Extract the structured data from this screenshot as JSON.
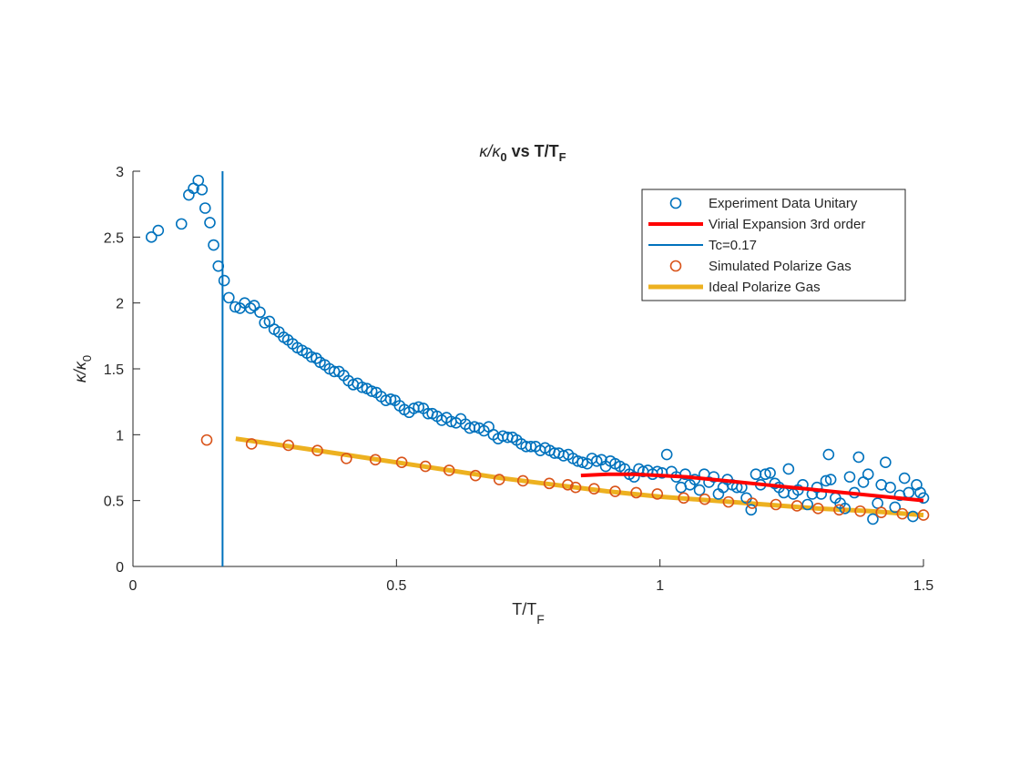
{
  "figure": {
    "title": "κ/κ0 vs T/TF",
    "title_parts": {
      "kappa": "κ",
      "kappa_sub": "0",
      "vs": " vs T/T",
      "tf_sub": "F"
    },
    "xlabel_parts": {
      "main": "T/T",
      "sub": "F"
    },
    "ylabel_parts": {
      "kappa": "κ",
      "slash": "/κ",
      "sub": "0"
    }
  },
  "chart_data": {
    "type": "scatter",
    "title": "κ/κ0 vs T/TF",
    "xlabel": "T/TF",
    "ylabel": "κ/κ0",
    "xlim": [
      0,
      1.5
    ],
    "ylim": [
      0,
      3
    ],
    "xticks": [
      "0",
      "0.5",
      "1",
      "1.5"
    ],
    "yticks": [
      "0",
      "0.5",
      "1",
      "1.5",
      "2",
      "2.5",
      "3"
    ],
    "grid": false,
    "legend_position": "top-right",
    "colors": {
      "experiment": "#0072BD",
      "virial": "#FF0000",
      "tc": "#0072BD",
      "simulated": "#D95319",
      "ideal": "#EDB120",
      "axis": "#262626"
    },
    "series": [
      {
        "name": "Experiment Data Unitary",
        "style": "circle",
        "points": [
          [
            0.035,
            2.5
          ],
          [
            0.048,
            2.55
          ],
          [
            0.092,
            2.6
          ],
          [
            0.106,
            2.82
          ],
          [
            0.115,
            2.87
          ],
          [
            0.124,
            2.93
          ],
          [
            0.131,
            2.86
          ],
          [
            0.137,
            2.72
          ],
          [
            0.146,
            2.61
          ],
          [
            0.153,
            2.44
          ],
          [
            0.162,
            2.28
          ],
          [
            0.173,
            2.17
          ],
          [
            0.182,
            2.04
          ],
          [
            0.194,
            1.97
          ],
          [
            0.203,
            1.96
          ],
          [
            0.212,
            2.0
          ],
          [
            0.223,
            1.96
          ],
          [
            0.23,
            1.98
          ],
          [
            0.241,
            1.93
          ],
          [
            0.25,
            1.85
          ],
          [
            0.259,
            1.86
          ],
          [
            0.268,
            1.8
          ],
          [
            0.277,
            1.78
          ],
          [
            0.286,
            1.74
          ],
          [
            0.294,
            1.72
          ],
          [
            0.303,
            1.69
          ],
          [
            0.312,
            1.66
          ],
          [
            0.321,
            1.64
          ],
          [
            0.33,
            1.62
          ],
          [
            0.339,
            1.59
          ],
          [
            0.348,
            1.58
          ],
          [
            0.355,
            1.55
          ],
          [
            0.364,
            1.53
          ],
          [
            0.373,
            1.5
          ],
          [
            0.382,
            1.48
          ],
          [
            0.391,
            1.48
          ],
          [
            0.4,
            1.45
          ],
          [
            0.409,
            1.41
          ],
          [
            0.418,
            1.38
          ],
          [
            0.426,
            1.39
          ],
          [
            0.435,
            1.36
          ],
          [
            0.444,
            1.35
          ],
          [
            0.453,
            1.33
          ],
          [
            0.462,
            1.32
          ],
          [
            0.471,
            1.29
          ],
          [
            0.48,
            1.26
          ],
          [
            0.489,
            1.27
          ],
          [
            0.497,
            1.26
          ],
          [
            0.506,
            1.22
          ],
          [
            0.515,
            1.19
          ],
          [
            0.524,
            1.17
          ],
          [
            0.533,
            1.2
          ],
          [
            0.542,
            1.21
          ],
          [
            0.551,
            1.2
          ],
          [
            0.56,
            1.16
          ],
          [
            0.568,
            1.16
          ],
          [
            0.577,
            1.14
          ],
          [
            0.586,
            1.11
          ],
          [
            0.595,
            1.13
          ],
          [
            0.604,
            1.1
          ],
          [
            0.613,
            1.09
          ],
          [
            0.622,
            1.12
          ],
          [
            0.631,
            1.08
          ],
          [
            0.639,
            1.05
          ],
          [
            0.648,
            1.06
          ],
          [
            0.657,
            1.05
          ],
          [
            0.666,
            1.03
          ],
          [
            0.675,
            1.06
          ],
          [
            0.684,
            1.0
          ],
          [
            0.693,
            0.97
          ],
          [
            0.702,
            0.99
          ],
          [
            0.711,
            0.98
          ],
          [
            0.72,
            0.98
          ],
          [
            0.728,
            0.96
          ],
          [
            0.737,
            0.93
          ],
          [
            0.746,
            0.91
          ],
          [
            0.755,
            0.91
          ],
          [
            0.764,
            0.91
          ],
          [
            0.773,
            0.88
          ],
          [
            0.782,
            0.9
          ],
          [
            0.791,
            0.88
          ],
          [
            0.8,
            0.86
          ],
          [
            0.808,
            0.86
          ],
          [
            0.817,
            0.84
          ],
          [
            0.826,
            0.85
          ],
          [
            0.835,
            0.82
          ],
          [
            0.844,
            0.8
          ],
          [
            0.853,
            0.79
          ],
          [
            0.862,
            0.78
          ],
          [
            0.871,
            0.82
          ],
          [
            0.88,
            0.8
          ],
          [
            0.889,
            0.81
          ],
          [
            0.897,
            0.76
          ],
          [
            0.906,
            0.8
          ],
          [
            0.915,
            0.78
          ],
          [
            0.924,
            0.76
          ],
          [
            0.933,
            0.74
          ],
          [
            0.942,
            0.7
          ],
          [
            0.951,
            0.68
          ],
          [
            0.96,
            0.74
          ],
          [
            0.968,
            0.72
          ],
          [
            0.977,
            0.73
          ],
          [
            0.986,
            0.7
          ],
          [
            0.995,
            0.72
          ],
          [
            1.004,
            0.71
          ],
          [
            1.013,
            0.85
          ],
          [
            1.022,
            0.72
          ],
          [
            1.031,
            0.68
          ],
          [
            1.04,
            0.6
          ],
          [
            1.048,
            0.7
          ],
          [
            1.057,
            0.62
          ],
          [
            1.066,
            0.66
          ],
          [
            1.075,
            0.58
          ],
          [
            1.084,
            0.7
          ],
          [
            1.093,
            0.64
          ],
          [
            1.102,
            0.68
          ],
          [
            1.111,
            0.55
          ],
          [
            1.12,
            0.6
          ],
          [
            1.128,
            0.66
          ],
          [
            1.137,
            0.62
          ],
          [
            1.146,
            0.6
          ],
          [
            1.155,
            0.6
          ],
          [
            1.164,
            0.52
          ],
          [
            1.173,
            0.43
          ],
          [
            1.182,
            0.7
          ],
          [
            1.191,
            0.62
          ],
          [
            1.2,
            0.7
          ],
          [
            1.209,
            0.71
          ],
          [
            1.218,
            0.63
          ],
          [
            1.226,
            0.6
          ],
          [
            1.235,
            0.56
          ],
          [
            1.244,
            0.74
          ],
          [
            1.253,
            0.55
          ],
          [
            1.262,
            0.58
          ],
          [
            1.271,
            0.62
          ],
          [
            1.28,
            0.47
          ],
          [
            1.289,
            0.55
          ],
          [
            1.298,
            0.6
          ],
          [
            1.306,
            0.55
          ],
          [
            1.315,
            0.65
          ],
          [
            1.32,
            0.85
          ],
          [
            1.324,
            0.66
          ],
          [
            1.333,
            0.52
          ],
          [
            1.342,
            0.48
          ],
          [
            1.351,
            0.44
          ],
          [
            1.36,
            0.68
          ],
          [
            1.369,
            0.56
          ],
          [
            1.377,
            0.83
          ],
          [
            1.386,
            0.64
          ],
          [
            1.395,
            0.7
          ],
          [
            1.404,
            0.36
          ],
          [
            1.413,
            0.48
          ],
          [
            1.42,
            0.62
          ],
          [
            1.428,
            0.79
          ],
          [
            1.437,
            0.6
          ],
          [
            1.446,
            0.45
          ],
          [
            1.455,
            0.54
          ],
          [
            1.464,
            0.67
          ],
          [
            1.472,
            0.56
          ],
          [
            1.48,
            0.38
          ],
          [
            1.487,
            0.62
          ],
          [
            1.494,
            0.56
          ],
          [
            1.5,
            0.52
          ]
        ]
      },
      {
        "name": "Virial Expansion 3rd order",
        "style": "line",
        "points": [
          [
            0.85,
            0.69
          ],
          [
            0.9,
            0.7
          ],
          [
            0.95,
            0.7
          ],
          [
            1.0,
            0.69
          ],
          [
            1.05,
            0.68
          ],
          [
            1.1,
            0.66
          ],
          [
            1.15,
            0.64
          ],
          [
            1.2,
            0.62
          ],
          [
            1.25,
            0.6
          ],
          [
            1.3,
            0.58
          ],
          [
            1.35,
            0.56
          ],
          [
            1.4,
            0.54
          ],
          [
            1.45,
            0.52
          ],
          [
            1.5,
            0.5
          ]
        ]
      },
      {
        "name": "Tc=0.17",
        "style": "vline",
        "x": 0.17,
        "y_range": [
          0,
          3
        ]
      },
      {
        "name": "Simulated Polarize Gas",
        "style": "circle",
        "points": [
          [
            0.14,
            0.96
          ],
          [
            0.225,
            0.93
          ],
          [
            0.295,
            0.92
          ],
          [
            0.35,
            0.88
          ],
          [
            0.405,
            0.82
          ],
          [
            0.46,
            0.81
          ],
          [
            0.51,
            0.79
          ],
          [
            0.555,
            0.76
          ],
          [
            0.6,
            0.73
          ],
          [
            0.65,
            0.69
          ],
          [
            0.695,
            0.66
          ],
          [
            0.74,
            0.65
          ],
          [
            0.79,
            0.63
          ],
          [
            0.825,
            0.62
          ],
          [
            0.84,
            0.6
          ],
          [
            0.875,
            0.59
          ],
          [
            0.915,
            0.57
          ],
          [
            0.955,
            0.56
          ],
          [
            0.995,
            0.55
          ],
          [
            1.045,
            0.52
          ],
          [
            1.085,
            0.51
          ],
          [
            1.13,
            0.49
          ],
          [
            1.175,
            0.48
          ],
          [
            1.22,
            0.47
          ],
          [
            1.26,
            0.46
          ],
          [
            1.3,
            0.44
          ],
          [
            1.34,
            0.43
          ],
          [
            1.38,
            0.42
          ],
          [
            1.42,
            0.41
          ],
          [
            1.46,
            0.4
          ],
          [
            1.5,
            0.39
          ]
        ]
      },
      {
        "name": "Ideal Polarize Gas",
        "style": "line",
        "points": [
          [
            0.195,
            0.97
          ],
          [
            0.3,
            0.91
          ],
          [
            0.4,
            0.85
          ],
          [
            0.5,
            0.79
          ],
          [
            0.6,
            0.73
          ],
          [
            0.7,
            0.67
          ],
          [
            0.8,
            0.62
          ],
          [
            0.9,
            0.57
          ],
          [
            1.0,
            0.53
          ],
          [
            1.1,
            0.5
          ],
          [
            1.2,
            0.47
          ],
          [
            1.3,
            0.44
          ],
          [
            1.4,
            0.42
          ],
          [
            1.5,
            0.39
          ]
        ]
      }
    ]
  }
}
